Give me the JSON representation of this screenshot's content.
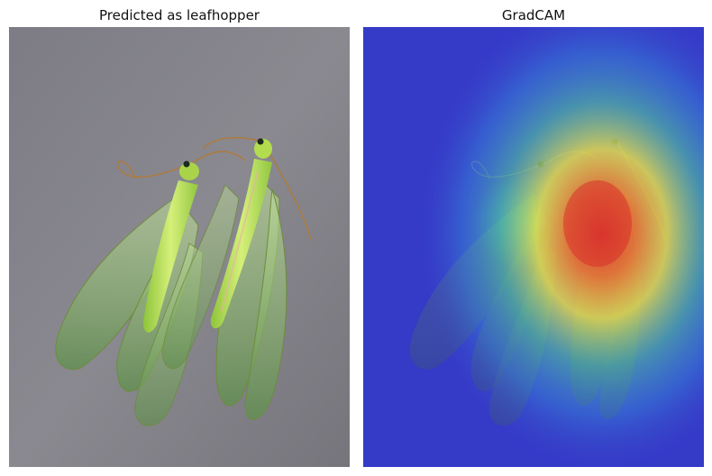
{
  "panels": [
    {
      "title": "Predicted as leafhopper",
      "subject": "green lacewing pair on grey background"
    },
    {
      "title": "GradCAM",
      "subject": "heatmap overlay on lacewing photo"
    }
  ],
  "colors": {
    "background_grey": "#87868e",
    "insect_green": "#b8dc5a",
    "wing_green": "#7fae52",
    "heatmap_low": "#3a3ecf",
    "heatmap_mid": "#f1e843",
    "heatmap_high": "#e0382a"
  }
}
